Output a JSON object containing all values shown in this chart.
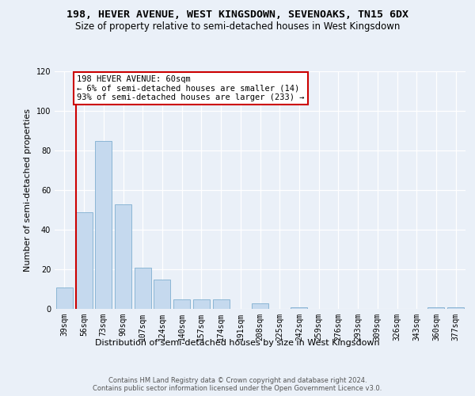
{
  "title": "198, HEVER AVENUE, WEST KINGSDOWN, SEVENOAKS, TN15 6DX",
  "subtitle": "Size of property relative to semi-detached houses in West Kingsdown",
  "xlabel": "Distribution of semi-detached houses by size in West Kingsdown",
  "ylabel": "Number of semi-detached properties",
  "categories": [
    "39sqm",
    "56sqm",
    "73sqm",
    "90sqm",
    "107sqm",
    "124sqm",
    "140sqm",
    "157sqm",
    "174sqm",
    "191sqm",
    "208sqm",
    "225sqm",
    "242sqm",
    "259sqm",
    "276sqm",
    "293sqm",
    "309sqm",
    "326sqm",
    "343sqm",
    "360sqm",
    "377sqm"
  ],
  "values": [
    11,
    49,
    85,
    53,
    21,
    15,
    5,
    5,
    5,
    0,
    3,
    0,
    1,
    0,
    0,
    0,
    0,
    0,
    0,
    1,
    1
  ],
  "bar_color": "#c5d9ee",
  "bar_edge_color": "#7fafd0",
  "vline_color": "#cc0000",
  "annotation_text": "198 HEVER AVENUE: 60sqm\n← 6% of semi-detached houses are smaller (14)\n93% of semi-detached houses are larger (233) →",
  "annotation_box_facecolor": "#ffffff",
  "annotation_box_edgecolor": "#cc0000",
  "ylim": [
    0,
    120
  ],
  "yticks": [
    0,
    20,
    40,
    60,
    80,
    100,
    120
  ],
  "footer_line1": "Contains HM Land Registry data © Crown copyright and database right 2024.",
  "footer_line2": "Contains public sector information licensed under the Open Government Licence v3.0.",
  "background_color": "#eaf0f8",
  "grid_color": "#ffffff",
  "title_fontsize": 9.5,
  "subtitle_fontsize": 8.5,
  "axis_label_fontsize": 8,
  "tick_fontsize": 7,
  "footer_fontsize": 6,
  "annotation_fontsize": 7.5
}
